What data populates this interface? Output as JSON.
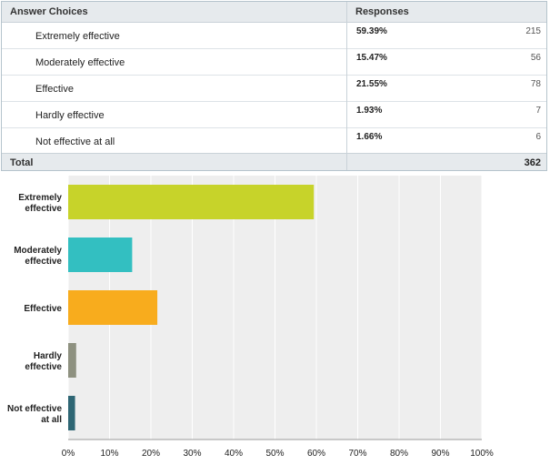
{
  "table": {
    "header": {
      "label": "Answer Choices",
      "responses": "Responses"
    },
    "rows": [
      {
        "label": "Extremely effective",
        "percent": "59.39%",
        "count": "215"
      },
      {
        "label": "Moderately effective",
        "percent": "15.47%",
        "count": "56"
      },
      {
        "label": "Effective",
        "percent": "21.55%",
        "count": "78"
      },
      {
        "label": "Hardly effective",
        "percent": "1.93%",
        "count": "7"
      },
      {
        "label": "Not effective at all",
        "percent": "1.66%",
        "count": "6"
      }
    ],
    "total": {
      "label": "Total",
      "count": "362"
    }
  },
  "chart_data": {
    "type": "bar",
    "orientation": "horizontal",
    "categories": [
      [
        "Extremely",
        "effective"
      ],
      [
        "Moderately",
        "effective"
      ],
      [
        "Effective"
      ],
      [
        "Hardly",
        "effective"
      ],
      [
        "Not effective",
        "at all"
      ]
    ],
    "values": [
      59.39,
      15.47,
      21.55,
      1.93,
      1.66
    ],
    "colors": [
      "#c7d32a",
      "#33bfc1",
      "#f8ac1d",
      "#8e9180",
      "#2e6674"
    ],
    "xlim": [
      0,
      100
    ],
    "ticks": [
      "0%",
      "10%",
      "20%",
      "30%",
      "40%",
      "50%",
      "60%",
      "70%",
      "80%",
      "90%",
      "100%"
    ],
    "grid": true,
    "background": "#eeeeee",
    "grid_color": "#ffffff"
  }
}
